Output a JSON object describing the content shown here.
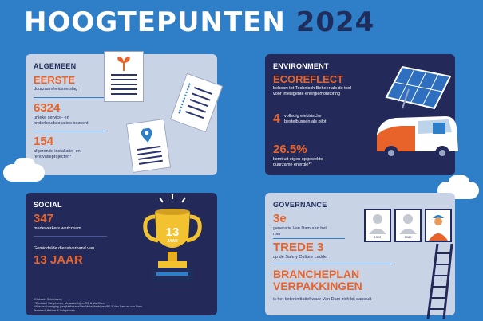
{
  "title": {
    "part1": "HOOGTEPUNTEN",
    "part2": "2024"
  },
  "algemeen": {
    "heading": "ALGEMEEN",
    "items": [
      {
        "value": "EERSTE",
        "label": "duurzaamheidsverslag"
      },
      {
        "value": "6324",
        "label": "unieke service- en onderhoudslocaties bezocht"
      },
      {
        "value": "154",
        "label": "afgeronde installatie- en renovatieprojecten*"
      }
    ]
  },
  "environment": {
    "heading": "ENVIRONMENT",
    "items": [
      {
        "value": "ECOREFLECT",
        "label": "behoort tot Technisch Beheer als dé tool voor intelligente energiemonitoring"
      },
      {
        "value": "4",
        "label": "volledig elektrische bestelbussen als pilot"
      },
      {
        "value": "26.5%",
        "label": "komt uit eigen opgewekte duurzame energie**"
      }
    ]
  },
  "social": {
    "heading": "SOCIAL",
    "items": [
      {
        "value": "347",
        "label": "medewerkers werkzaam"
      },
      {
        "value": "13 JAAR",
        "label": "Gemiddelde dienstverband van"
      }
    ],
    "trophy": {
      "number": "13",
      "unit": "JAAR"
    },
    "footnotes": [
      "*Exclusief Schiphoven",
      "**Exclusief Schiphoven, Metaalbedrijven/BF & Van Dam",
      "***Beursof vestiging (van)Hofhuizen/Van Metaalbedrijven/BF & Van Dam en van Dam Technisch Beheer & Schiphoven"
    ]
  },
  "governance": {
    "heading": "GOVERNANCE",
    "items": [
      {
        "value": "3e",
        "label": "generatie Van Dam aan het roer"
      },
      {
        "value": "TREDE 3",
        "label": "op de Safety Culture Ladder"
      },
      {
        "value": "BRANCHEPLAN",
        "value2": "VERPAKKINGEN",
        "label": "is het keteninitiatief waar Van Dam zich bij aansluit"
      }
    ],
    "portraits": [
      {
        "year": "1922"
      },
      {
        "year": "1980"
      },
      {
        "year": ""
      }
    ]
  },
  "colors": {
    "accent": "#e8632a",
    "navy": "#232a5a",
    "bg": "#2f7ec8",
    "light": "#c9d3e6"
  }
}
